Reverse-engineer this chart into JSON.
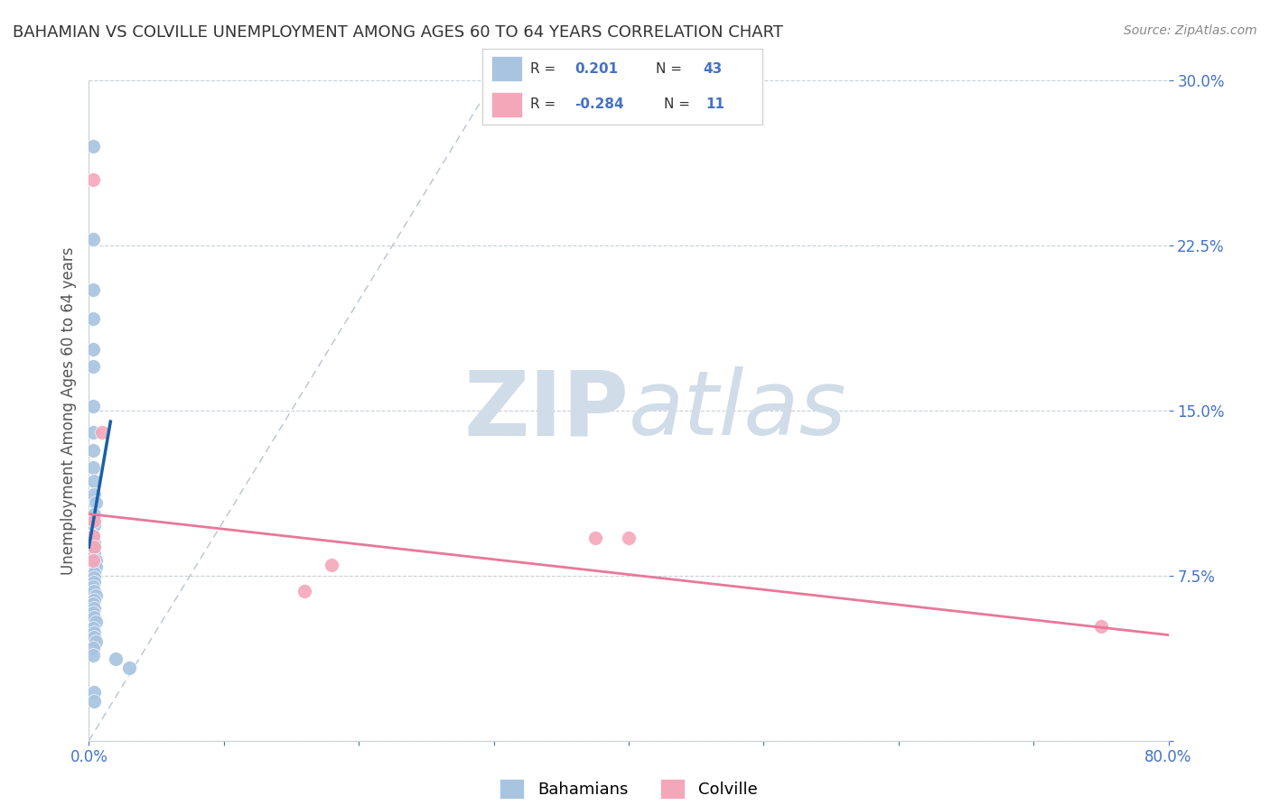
{
  "title": "BAHAMIAN VS COLVILLE UNEMPLOYMENT AMONG AGES 60 TO 64 YEARS CORRELATION CHART",
  "source": "Source: ZipAtlas.com",
  "ylabel": "Unemployment Among Ages 60 to 64 years",
  "xlim": [
    0.0,
    0.8
  ],
  "ylim": [
    0.0,
    0.3
  ],
  "xticks": [
    0.0,
    0.1,
    0.2,
    0.3,
    0.4,
    0.5,
    0.6,
    0.7,
    0.8
  ],
  "xticklabels": [
    "0.0%",
    "",
    "",
    "",
    "",
    "",
    "",
    "",
    "80.0%"
  ],
  "yticks": [
    0.0,
    0.075,
    0.15,
    0.225,
    0.3
  ],
  "yticklabels": [
    "",
    "7.5%",
    "15.0%",
    "22.5%",
    "30.0%"
  ],
  "r_bahamian": "0.201",
  "n_bahamian": "43",
  "r_colville": "-0.284",
  "n_colville": "11",
  "bahamian_color": "#a8c4e0",
  "colville_color": "#f4a7b9",
  "trend_bahamian_color": "#1a5fa8",
  "trend_colville_color": "#e8789a",
  "diagonal_color": "#b8c4d0",
  "watermark_color": "#d0dce8",
  "tick_color": "#4472c4",
  "label_color": "#555555",
  "grid_color": "#c8d0d8",
  "background_color": "#ffffff",
  "bahamian_points": [
    [
      0.003,
      0.27
    ],
    [
      0.003,
      0.228
    ],
    [
      0.003,
      0.205
    ],
    [
      0.003,
      0.192
    ],
    [
      0.003,
      0.178
    ],
    [
      0.003,
      0.17
    ],
    [
      0.003,
      0.152
    ],
    [
      0.003,
      0.14
    ],
    [
      0.003,
      0.132
    ],
    [
      0.003,
      0.124
    ],
    [
      0.004,
      0.118
    ],
    [
      0.004,
      0.112
    ],
    [
      0.005,
      0.108
    ],
    [
      0.004,
      0.103
    ],
    [
      0.004,
      0.098
    ],
    [
      0.003,
      0.093
    ],
    [
      0.004,
      0.09
    ],
    [
      0.003,
      0.088
    ],
    [
      0.004,
      0.085
    ],
    [
      0.005,
      0.082
    ],
    [
      0.005,
      0.079
    ],
    [
      0.004,
      0.076
    ],
    [
      0.004,
      0.074
    ],
    [
      0.004,
      0.072
    ],
    [
      0.003,
      0.07
    ],
    [
      0.004,
      0.068
    ],
    [
      0.005,
      0.066
    ],
    [
      0.004,
      0.064
    ],
    [
      0.003,
      0.062
    ],
    [
      0.004,
      0.06
    ],
    [
      0.003,
      0.058
    ],
    [
      0.004,
      0.056
    ],
    [
      0.005,
      0.054
    ],
    [
      0.003,
      0.051
    ],
    [
      0.004,
      0.049
    ],
    [
      0.004,
      0.047
    ],
    [
      0.005,
      0.045
    ],
    [
      0.003,
      0.042
    ],
    [
      0.003,
      0.039
    ],
    [
      0.02,
      0.037
    ],
    [
      0.03,
      0.033
    ],
    [
      0.004,
      0.022
    ],
    [
      0.004,
      0.018
    ]
  ],
  "colville_points": [
    [
      0.003,
      0.255
    ],
    [
      0.01,
      0.14
    ],
    [
      0.004,
      0.1
    ],
    [
      0.003,
      0.093
    ],
    [
      0.004,
      0.088
    ],
    [
      0.003,
      0.082
    ],
    [
      0.18,
      0.08
    ],
    [
      0.375,
      0.092
    ],
    [
      0.4,
      0.092
    ],
    [
      0.16,
      0.068
    ],
    [
      0.75,
      0.052
    ]
  ],
  "bah_trend_x": [
    0.0,
    0.016
  ],
  "bah_trend_y": [
    0.088,
    0.145
  ],
  "col_trend_x": [
    0.0,
    0.8
  ],
  "col_trend_y": [
    0.103,
    0.048
  ]
}
